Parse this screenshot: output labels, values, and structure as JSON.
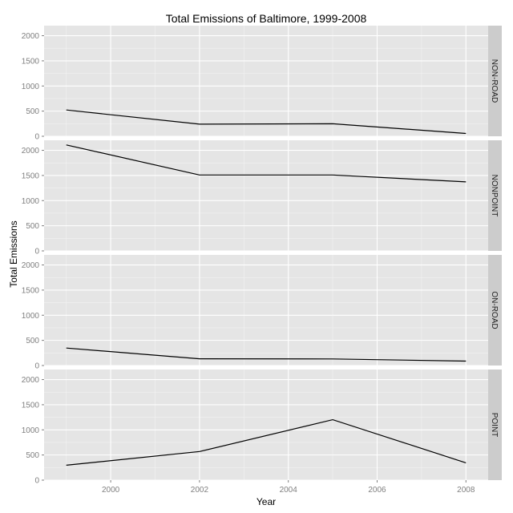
{
  "chart_data": {
    "type": "line",
    "title": "Total Emissions of Baltimore, 1999-2008",
    "xlabel": "Year",
    "ylabel": "Total Emissions",
    "x": [
      1999,
      2002,
      2005,
      2008
    ],
    "xlim": [
      1998.5,
      2008.5
    ],
    "ylim": [
      0,
      2200
    ],
    "x_ticks": [
      2000,
      2002,
      2004,
      2006,
      2008
    ],
    "y_ticks": [
      0,
      500,
      1000,
      1500,
      2000
    ],
    "grid": true,
    "facets": [
      {
        "label": "NON-ROAD",
        "values": [
          522.9,
          240.8,
          248.9,
          55.8
        ]
      },
      {
        "label": "NONPOINT",
        "values": [
          2107.6,
          1509.5,
          1509.5,
          1373.2
        ]
      },
      {
        "label": "ON-ROAD",
        "values": [
          346.8,
          134.3,
          130.4,
          88.3
        ]
      },
      {
        "label": "POINT",
        "values": [
          296.8,
          569.3,
          1202.5,
          344.98
        ]
      }
    ]
  }
}
